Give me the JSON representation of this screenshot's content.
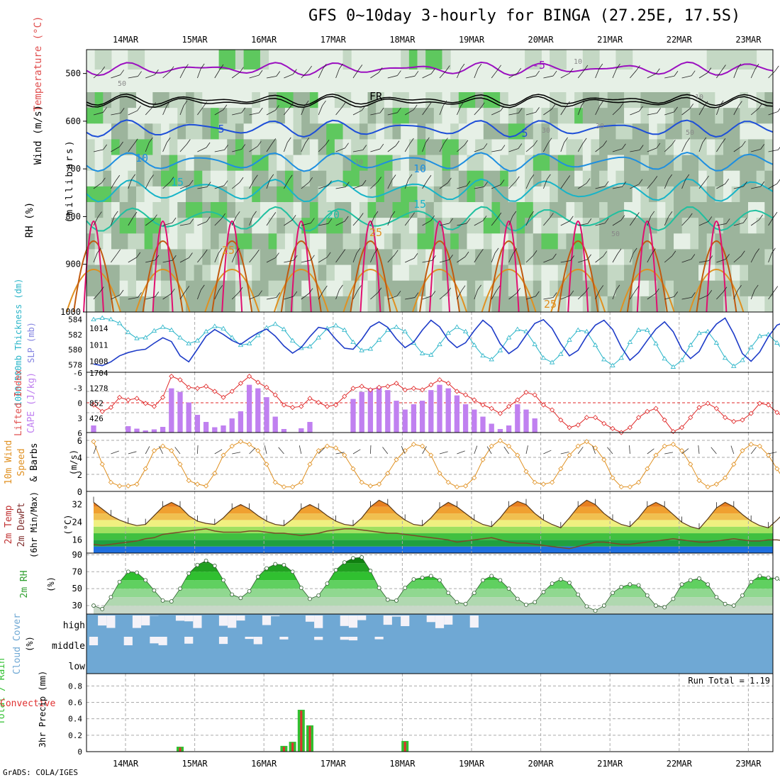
{
  "title": "GFS 0~10day 3-hourly for BINGA (27.25E, 17.5S)",
  "footer": "GrADS: COLA/IGES",
  "dates": [
    "14MAR",
    "15MAR",
    "16MAR",
    "17MAR",
    "18MAR",
    "19MAR",
    "20MAR",
    "21MAR",
    "22MAR",
    "23MAR"
  ],
  "colors": {
    "rh_dark": "#9cb49c",
    "rh_mid": "#c4d8c4",
    "rh_light": "#e6f0e6",
    "rh_green": "#5ec85e",
    "t_purple": "#9b10c0",
    "t_blue": "#1e4fd8",
    "t_lblue": "#1e8fe0",
    "t_teal": "#18b4c8",
    "t_green": "#20c0a0",
    "t_orange": "#e09020",
    "t_brown": "#c05a10",
    "t_magenta": "#e01070",
    "freeze": "#000000",
    "slp": "#1e3cc8",
    "thick": "#28b4c8",
    "cape": "#c080f0",
    "li": "#e02828",
    "wind": "#e09020",
    "temp_line": "#5a3a1a",
    "dew_line": "#7a4a2a",
    "rh2m": "#40c040",
    "cloud": "#6fa8d4",
    "cloud_clear": "#f4f2f8",
    "precip_total": "#30c030",
    "precip_conv": "#e03030"
  },
  "panels": {
    "upper": {
      "ylabel_wind": "Wind (m/s)",
      "ylabel_temp": "Temperature (°C)",
      "ylabel_rh": "RH (%)",
      "ylabel_units": "(millibars)",
      "yticks": [
        "500",
        "600",
        "700",
        "800",
        "900",
        "1000"
      ],
      "contour_labels": [
        "-5",
        "FR",
        "5",
        "5",
        "10",
        "10",
        "15",
        "15",
        "20",
        "25",
        "25",
        "25",
        "10",
        "10",
        "30",
        "30",
        "30",
        "50",
        "50",
        "50"
      ]
    },
    "slp": {
      "ylabel_left": "1000-500mb Thickness (dm)",
      "ylabel_right": "SLP (mb)",
      "left_ticks": [
        "584",
        "582",
        "580",
        "578"
      ],
      "right_ticks": [
        "1014",
        "1011",
        "1008"
      ]
    },
    "cape": {
      "ylabel_left": "Lifted Index",
      "ylabel_right": "CAPE (J/kg)",
      "left_ticks": [
        "-6",
        "-3",
        "0",
        "3",
        "6"
      ],
      "right_ticks": [
        "1704",
        "1278",
        "852",
        "426"
      ]
    },
    "wind": {
      "ylabel_a": "10m Wind",
      "ylabel_b": "Speed",
      "ylabel_c": "& Barbs",
      "ylabel_units": "(m/s)",
      "ticks": [
        "6",
        "4",
        "2",
        "0"
      ]
    },
    "temp": {
      "ylabel_a": "2m Temp",
      "ylabel_b": "2m DewPt",
      "ylabel_c": "(6hr Min/Max)",
      "ylabel_units": "(°C)",
      "ticks": [
        "32",
        "24",
        "16"
      ]
    },
    "rh": {
      "ylabel_a": "2m RH",
      "ylabel_units": "(%)",
      "ticks": [
        "90",
        "70",
        "50",
        "30"
      ]
    },
    "cloud": {
      "ylabel_a": "Cloud Cover",
      "ylabel_units": "(%)",
      "levels": [
        "high",
        "middle",
        "low"
      ]
    },
    "precip": {
      "ylabel_a": "Total / Rain",
      "ylabel_b": "Convective",
      "ylabel_c": "3hr Precip (mm)",
      "ticks": [
        "0.8",
        "0.6",
        "0.4",
        "0.2",
        "0"
      ],
      "run_total": "Run Total = 1.19"
    }
  },
  "chart_data": {
    "type": "line",
    "x_start": "13MAR 15Z",
    "x_step_hours": 3,
    "slp_mb": [
      1007.5,
      1007.2,
      1007.9,
      1009.0,
      1009.6,
      1010.0,
      1010.2,
      1011.3,
      1012.3,
      1011.6,
      1009.0,
      1007.9,
      1010.2,
      1012.6,
      1013.8,
      1012.9,
      1011.8,
      1011.1,
      1012.2,
      1013.2,
      1013.9,
      1012.6,
      1010.8,
      1009.5,
      1010.5,
      1012.5,
      1014.2,
      1013.9,
      1012.0,
      1010.4,
      1010.2,
      1012.0,
      1014.3,
      1015.2,
      1014.2,
      1012.1,
      1010.5,
      1011.5,
      1013.7,
      1015.5,
      1014.3,
      1011.9,
      1010.5,
      1011.4,
      1013.6,
      1015.5,
      1014.2,
      1011.2,
      1009.4,
      1010.5,
      1012.8,
      1014.9,
      1015.6,
      1014.0,
      1011.2,
      1009.0,
      1010.0,
      1012.6,
      1014.6,
      1015.5,
      1013.8,
      1010.6,
      1008.2,
      1009.6,
      1011.8,
      1013.9,
      1015.2,
      1013.4,
      1010.2,
      1008.5,
      1009.8,
      1012.8,
      1014.8,
      1015.9,
      1013.0,
      1009.4,
      1008.0,
      1009.7,
      1012.5,
      1014.6,
      1015.2
    ],
    "thickness_dm": [
      584.0,
      584.2,
      584.0,
      583.5,
      582.3,
      581.5,
      581.6,
      582.5,
      583.0,
      582.6,
      581.6,
      580.8,
      581.2,
      582.4,
      583.1,
      582.8,
      581.6,
      580.6,
      580.8,
      581.9,
      582.9,
      583.4,
      582.7,
      581.2,
      580.2,
      580.4,
      581.6,
      582.8,
      583.2,
      582.6,
      581.0,
      579.9,
      580.1,
      581.3,
      582.6,
      583.0,
      582.4,
      580.9,
      579.5,
      579.3,
      580.7,
      582.2,
      583.0,
      582.4,
      580.6,
      579.2,
      578.7,
      579.9,
      581.6,
      582.7,
      582.4,
      580.7,
      578.9,
      578.3,
      579.4,
      581.3,
      582.6,
      582.4,
      580.6,
      578.7,
      577.9,
      578.9,
      581.0,
      582.6,
      582.6,
      580.8,
      578.8,
      577.7,
      578.6,
      580.6,
      582.2,
      582.4,
      580.9,
      578.9,
      577.8,
      578.6,
      580.3,
      581.8,
      582.0,
      580.9,
      579.5,
      578.8,
      578.8
    ],
    "cape_jkg": [
      200,
      0,
      0,
      0,
      180,
      110,
      60,
      90,
      160,
      1250,
      1150,
      850,
      500,
      300,
      150,
      200,
      400,
      600,
      1350,
      1250,
      1000,
      450,
      100,
      0,
      120,
      300,
      0,
      0,
      0,
      0,
      950,
      1150,
      1250,
      1300,
      1200,
      900,
      650,
      800,
      900,
      1200,
      1350,
      1250,
      1050,
      800,
      650,
      450,
      250,
      100,
      200,
      800,
      650,
      400,
      0,
      0,
      0,
      0,
      0,
      0,
      0,
      0,
      0,
      0,
      0,
      0,
      0,
      0,
      0,
      0,
      0,
      0,
      0,
      0,
      0,
      0,
      0,
      0,
      0,
      0,
      0,
      0,
      0,
      0,
      0
    ],
    "lifted_index": [
      0.5,
      1.8,
      1.0,
      -1.0,
      -0.5,
      -0.8,
      0.2,
      0.8,
      -1.0,
      -5.2,
      -4.5,
      -3.0,
      -2.8,
      -3.2,
      -2.2,
      -1.0,
      -2.2,
      -3.8,
      -5.2,
      -4.0,
      -3.0,
      -1.5,
      0.5,
      1.0,
      0.8,
      -0.8,
      0.0,
      0.8,
      0.5,
      -1.2,
      -2.8,
      -3.2,
      -2.5,
      -3.0,
      -3.2,
      -3.8,
      -2.5,
      -2.8,
      -2.5,
      -3.5,
      -4.5,
      -3.8,
      -2.2,
      -1.5,
      -0.5,
      0.5,
      1.2,
      2.2,
      0.8,
      -0.5,
      -2.0,
      -1.5,
      0.5,
      1.5,
      3.5,
      5.0,
      4.5,
      3.0,
      3.0,
      4.2,
      5.2,
      6.0,
      5.0,
      3.0,
      1.8,
      1.2,
      3.5,
      5.8,
      5.0,
      3.0,
      1.0,
      0.2,
      1.2,
      3.0,
      3.8,
      3.5,
      2.2,
      0.2,
      0.5,
      2.0,
      3.2,
      3.5,
      0.5
    ],
    "wind10m_ms": [
      5.5,
      3.0,
      1.0,
      0.6,
      0.6,
      0.8,
      2.5,
      4.5,
      5.0,
      4.5,
      3.0,
      1.2,
      0.8,
      0.6,
      2.0,
      4.0,
      5.0,
      5.5,
      5.2,
      4.5,
      3.0,
      1.0,
      0.5,
      0.5,
      1.0,
      3.0,
      4.5,
      5.0,
      4.8,
      4.0,
      2.5,
      1.0,
      0.6,
      0.8,
      2.0,
      3.5,
      4.5,
      5.2,
      5.0,
      4.0,
      2.0,
      1.0,
      0.5,
      0.6,
      1.5,
      3.5,
      5.0,
      5.6,
      5.0,
      4.0,
      2.2,
      1.0,
      0.8,
      1.0,
      2.5,
      4.0,
      5.0,
      5.5,
      4.8,
      3.5,
      1.5,
      0.5,
      0.5,
      1.0,
      2.5,
      4.0,
      5.0,
      5.2,
      4.5,
      3.0,
      1.2,
      0.5,
      0.8,
      1.5,
      3.0,
      4.5,
      5.2,
      5.0,
      4.0,
      2.5,
      1.0,
      0.3,
      3.5
    ],
    "temp2m_c": [
      33,
      30,
      27,
      25,
      23.5,
      22.5,
      23,
      27,
      31,
      33,
      31,
      27,
      24.5,
      23.5,
      23,
      26,
      30,
      32,
      30,
      27,
      24.5,
      23,
      22.5,
      25.5,
      30,
      32,
      30,
      27,
      24.5,
      23,
      22.5,
      26,
      31,
      34,
      32,
      28,
      25,
      23,
      22.5,
      26,
      30.5,
      33,
      31,
      28,
      25,
      23,
      22,
      26,
      31,
      33.5,
      32,
      28,
      25,
      23,
      21.5,
      26,
      31,
      34,
      32,
      28,
      25,
      23,
      22,
      26,
      31,
      33,
      31,
      27.5,
      24,
      22,
      21,
      25.5,
      30.5,
      33,
      31,
      27.5,
      24.5,
      22.5,
      21.5,
      25,
      29,
      30.5,
      24
    ],
    "dewpt2m_c": [
      14,
      13.5,
      14,
      14.5,
      15,
      15.5,
      16.5,
      17,
      18.5,
      19,
      19.5,
      20,
      20.5,
      21,
      20,
      19.5,
      19.5,
      19.5,
      20,
      20,
      19.5,
      19,
      19,
      18.5,
      18,
      18.5,
      19,
      20,
      20.5,
      21,
      21,
      20.5,
      20,
      19.5,
      19,
      19,
      18.5,
      18,
      17.5,
      17,
      16.5,
      16,
      15,
      15.5,
      16,
      16.5,
      17,
      16,
      15,
      14.5,
      14.5,
      14,
      13.5,
      13,
      12.5,
      12,
      13,
      14,
      15,
      15,
      14.5,
      14,
      14,
      14.5,
      15,
      15.5,
      16,
      16.5,
      16,
      15.5,
      15,
      15,
      15.5,
      16,
      16.5,
      16,
      15.5,
      15.5,
      16,
      16,
      15.5,
      15,
      15
    ],
    "rh2m_pct": [
      30,
      26,
      40,
      58,
      70,
      69,
      60,
      48,
      36,
      35,
      50,
      68,
      78,
      83,
      77,
      60,
      43,
      39,
      47,
      64,
      74,
      79,
      78,
      70,
      51,
      38,
      42,
      56,
      72,
      81,
      86,
      87,
      71,
      51,
      37,
      36,
      51,
      61,
      63,
      65,
      60,
      45,
      34,
      32,
      45,
      60,
      65,
      60,
      50,
      38,
      31,
      34,
      46,
      56,
      61,
      57,
      43,
      29,
      24,
      30,
      45,
      52,
      55,
      54,
      42,
      30,
      28,
      38,
      55,
      60,
      62,
      55,
      40,
      32,
      30,
      42,
      58,
      65,
      63,
      62,
      55,
      45,
      56
    ],
    "precip_total_mm": [
      0,
      0,
      0,
      0,
      0,
      0,
      0,
      0,
      0,
      0,
      0.06,
      0,
      0,
      0,
      0,
      0,
      0,
      0,
      0,
      0,
      0,
      0,
      0.07,
      0.12,
      0.51,
      0.32,
      0,
      0,
      0,
      0,
      0,
      0,
      0,
      0,
      0,
      0,
      0.13,
      0,
      0,
      0,
      0,
      0,
      0,
      0,
      0,
      0,
      0,
      0,
      0,
      0,
      0,
      0,
      0,
      0,
      0,
      0,
      0,
      0,
      0,
      0,
      0,
      0,
      0,
      0,
      0,
      0,
      0,
      0,
      0,
      0,
      0,
      0,
      0,
      0,
      0,
      0,
      0,
      0,
      0,
      0,
      0
    ],
    "precip_conv_mm": [
      0,
      0,
      0,
      0,
      0,
      0,
      0,
      0,
      0,
      0,
      0.05,
      0,
      0,
      0,
      0,
      0,
      0,
      0,
      0,
      0,
      0,
      0,
      0.06,
      0.11,
      0.5,
      0.31,
      0,
      0,
      0,
      0,
      0,
      0,
      0,
      0,
      0,
      0,
      0.12,
      0,
      0,
      0,
      0,
      0,
      0,
      0,
      0,
      0,
      0,
      0,
      0,
      0,
      0,
      0,
      0,
      0,
      0,
      0,
      0,
      0,
      0,
      0,
      0,
      0,
      0,
      0,
      0,
      0,
      0,
      0,
      0,
      0,
      0,
      0,
      0,
      0,
      0,
      0,
      0,
      0,
      0,
      0,
      0
    ],
    "run_total_mm": 1.19,
    "ranges": {
      "pressure_mb": [
        450,
        1000
      ],
      "slp_mb": [
        1006,
        1017
      ],
      "thickness_dm": [
        577,
        585
      ],
      "cape_jkg": [
        0,
        1704
      ],
      "lifted_index": [
        -6,
        6
      ],
      "wind10m_ms": [
        0,
        6.5
      ],
      "temp2m_c": [
        10,
        38
      ],
      "rh2m_pct": [
        20,
        92
      ],
      "precip_mm": [
        0,
        0.95
      ]
    }
  }
}
